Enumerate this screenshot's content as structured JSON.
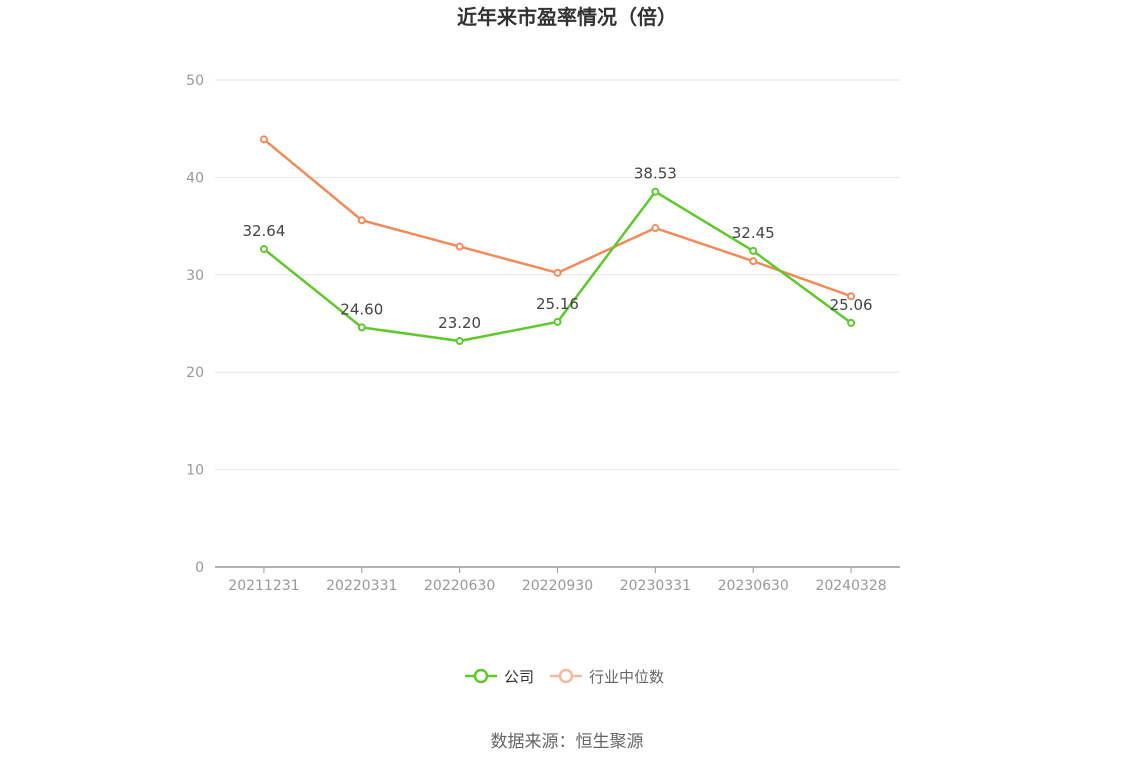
{
  "chart_data": {
    "type": "line",
    "title": "近年来市盈率情况（倍）",
    "categories": [
      "20211231",
      "20220331",
      "20220630",
      "20220930",
      "20230331",
      "20230630",
      "20240328"
    ],
    "ylim": [
      0,
      50
    ],
    "yticks": [
      0,
      10,
      20,
      30,
      40,
      50
    ],
    "grid": true,
    "legend_position": "bottom",
    "series": [
      {
        "name": "公司",
        "color": "#5ec92b",
        "values": [
          32.64,
          24.6,
          23.2,
          25.16,
          38.53,
          32.45,
          25.06
        ],
        "labels": [
          "32.64",
          "24.60",
          "23.20",
          "25.16",
          "38.53",
          "32.45",
          "25.06"
        ]
      },
      {
        "name": "行业中位数",
        "color": "#f28b5a",
        "legend_color": "#f7b9a0",
        "values": [
          43.9,
          35.6,
          32.9,
          30.2,
          34.8,
          31.4,
          27.8
        ]
      }
    ]
  },
  "source": "数据来源：恒生聚源"
}
